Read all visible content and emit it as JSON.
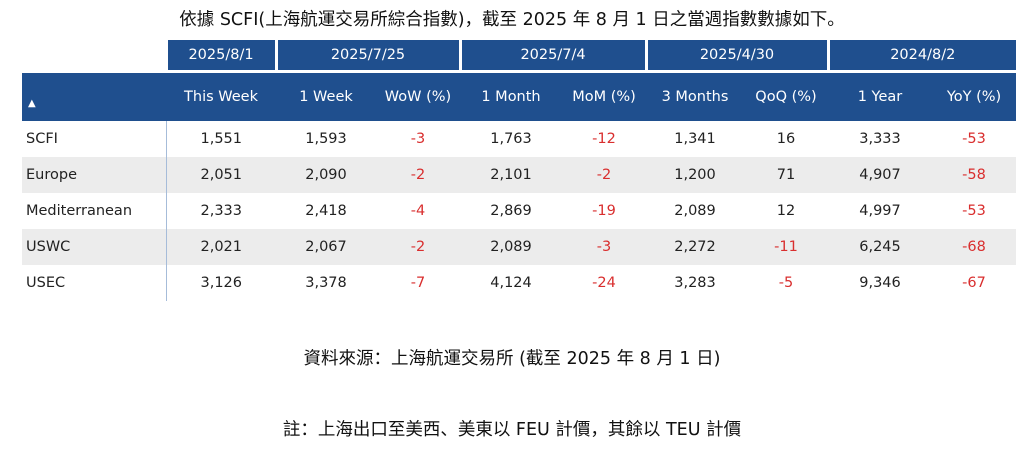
{
  "title": "依據 SCFI(上海航運交易所綜合指數)，截至 2025 年 8 月 1 日之當週指數數據如下。",
  "table": {
    "date_headers": [
      "2025/8/1",
      "2025/7/25",
      "2025/7/4",
      "2025/4/30",
      "2024/8/2"
    ],
    "sort_icon": "▲",
    "column_headers": [
      "This Week",
      "1 Week",
      "WoW (%)",
      "1 Month",
      "MoM (%)",
      "3 Months",
      "QoQ (%)",
      "1 Year",
      "YoY (%)"
    ],
    "rows": [
      {
        "name": "SCFI",
        "values": [
          "1,551",
          "1,593",
          "-3",
          "1,763",
          "-12",
          "1,341",
          "16",
          "3,333",
          "-53"
        ]
      },
      {
        "name": "Europe",
        "values": [
          "2,051",
          "2,090",
          "-2",
          "2,101",
          "-2",
          "1,200",
          "71",
          "4,907",
          "-58"
        ]
      },
      {
        "name": "Mediterranean",
        "values": [
          "2,333",
          "2,418",
          "-4",
          "2,869",
          "-19",
          "2,089",
          "12",
          "4,997",
          "-53"
        ]
      },
      {
        "name": "USWC",
        "values": [
          "2,021",
          "2,067",
          "-2",
          "2,089",
          "-3",
          "2,272",
          "-11",
          "6,245",
          "-68"
        ]
      },
      {
        "name": "USEC",
        "values": [
          "3,126",
          "3,378",
          "-7",
          "4,124",
          "-24",
          "3,283",
          "-5",
          "9,346",
          "-67"
        ]
      }
    ]
  },
  "colors": {
    "header_bg": "#1f4f8e",
    "negative": "#d92e2e",
    "shade": "#ececec"
  },
  "source": "資料來源：上海航運交易所 (截至 2025 年 8 月 1 日)",
  "note": "註：上海出口至美西、美東以 FEU 計價，其餘以 TEU 計價"
}
